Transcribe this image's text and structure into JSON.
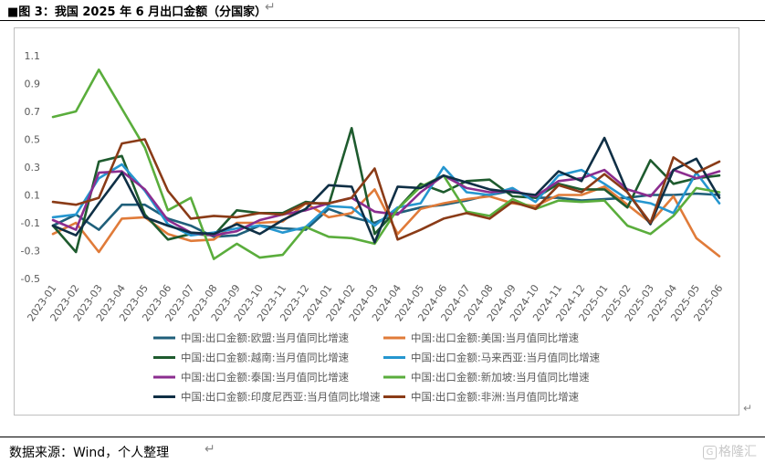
{
  "header": {
    "title": "■图 3：我国 2025 年 6 月出口金额（分国家）",
    "return_mark": "↵"
  },
  "footer": {
    "source": "数据来源：Wind，个人整理",
    "return_mark": "↵",
    "side_mark": "↵",
    "watermark": "格隆汇",
    "watermark_badge": "G"
  },
  "chart_data": {
    "type": "line",
    "ylim": [
      -0.5,
      1.1
    ],
    "yticks": [
      -0.5,
      -0.3,
      -0.1,
      0.1,
      0.3,
      0.5,
      0.7,
      0.9,
      1.1
    ],
    "ytick_labels": [
      "-0.5",
      "-0.3",
      "-0.1",
      "0.1",
      "0.3",
      "0.5",
      "0.7",
      "0.9",
      "1.1"
    ],
    "grid": false,
    "legend_position": "bottom",
    "x": [
      "2023-01",
      "2023-02",
      "2023-03",
      "2023-04",
      "2023-05",
      "2023-06",
      "2023-07",
      "2023-08",
      "2023-09",
      "2023-10",
      "2023-11",
      "2023-12",
      "2024-01",
      "2024-02",
      "2024-03",
      "2024-04",
      "2024-05",
      "2024-06",
      "2024-07",
      "2024-08",
      "2024-09",
      "2024-10",
      "2024-11",
      "2024-12",
      "2025-01",
      "2025-02",
      "2025-03",
      "2025-04",
      "2025-05",
      "2025-06"
    ],
    "series": [
      {
        "name": "中国:出口金额:欧盟:当月值同比增速",
        "color": "#1f5f7a",
        "values": [
          -0.12,
          -0.04,
          -0.15,
          0.03,
          0.03,
          -0.07,
          -0.12,
          -0.2,
          -0.19,
          -0.12,
          -0.14,
          -0.15,
          0.0,
          -0.06,
          -0.1,
          -0.03,
          0.01,
          0.03,
          0.06,
          0.1,
          0.13,
          0.08,
          0.08,
          0.06,
          0.07,
          0.08,
          0.1,
          0.1,
          0.11,
          0.1
        ]
      },
      {
        "name": "中国:出口金额:美国:当月值同比增速",
        "color": "#e07b39",
        "values": [
          -0.18,
          -0.1,
          -0.31,
          -0.07,
          -0.06,
          -0.18,
          -0.23,
          -0.22,
          -0.1,
          -0.1,
          -0.09,
          0.04,
          -0.06,
          -0.03,
          0.14,
          -0.18,
          0.0,
          0.04,
          0.07,
          0.09,
          0.04,
          0.02,
          0.1,
          0.1,
          0.16,
          0.03,
          -0.1,
          0.09,
          -0.21,
          -0.34
        ]
      },
      {
        "name": "中国:出口金额:越南:当月值同比增速",
        "color": "#1e5b2e",
        "values": [
          -0.12,
          -0.31,
          0.34,
          0.38,
          -0.04,
          -0.22,
          -0.18,
          -0.19,
          -0.01,
          -0.03,
          -0.03,
          0.05,
          0.03,
          0.58,
          -0.18,
          0.0,
          0.18,
          0.12,
          0.2,
          0.21,
          0.09,
          0.08,
          0.18,
          0.14,
          0.14,
          0.01,
          0.35,
          0.18,
          0.22,
          0.24
        ]
      },
      {
        "name": "中国:出口金额:马来西亚:当月值同比增速",
        "color": "#2596cf",
        "values": [
          -0.06,
          -0.04,
          0.22,
          0.32,
          0.13,
          -0.11,
          -0.19,
          -0.17,
          -0.14,
          -0.12,
          -0.17,
          -0.13,
          0.02,
          0.01,
          -0.12,
          0.01,
          0.04,
          0.3,
          0.12,
          0.1,
          0.15,
          0.05,
          0.24,
          0.28,
          0.18,
          0.07,
          0.04,
          -0.03,
          0.26,
          0.04
        ]
      },
      {
        "name": "中国:出口金额:泰国:当月值同比增速",
        "color": "#8b2d8f",
        "values": [
          -0.08,
          -0.15,
          0.26,
          0.27,
          0.14,
          -0.08,
          -0.17,
          -0.19,
          -0.16,
          -0.08,
          -0.04,
          -0.01,
          0.04,
          0.08,
          -0.02,
          -0.04,
          0.12,
          0.24,
          0.15,
          0.12,
          0.13,
          0.09,
          0.2,
          0.22,
          0.28,
          0.14,
          0.09,
          0.28,
          0.22,
          0.27
        ]
      },
      {
        "name": "中国:出口金额:新加坡:当月值同比增速",
        "color": "#5aad3c",
        "values": [
          0.66,
          0.7,
          1.0,
          0.72,
          0.44,
          -0.01,
          0.08,
          -0.36,
          -0.25,
          -0.35,
          -0.33,
          -0.13,
          -0.2,
          -0.21,
          -0.25,
          0.0,
          0.16,
          0.24,
          -0.02,
          -0.05,
          0.07,
          0.0,
          0.06,
          0.05,
          0.06,
          -0.12,
          -0.18,
          -0.05,
          0.15,
          0.12
        ]
      },
      {
        "name": "中国:出口金额:印度尼西亚:当月值同比增速",
        "color": "#0f2f45",
        "values": [
          -0.12,
          -0.19,
          0.04,
          0.26,
          -0.06,
          -0.12,
          -0.17,
          -0.18,
          -0.11,
          -0.18,
          -0.08,
          0.0,
          0.17,
          0.16,
          -0.24,
          0.16,
          0.15,
          0.24,
          0.19,
          0.14,
          0.12,
          0.1,
          0.27,
          0.2,
          0.51,
          0.12,
          -0.11,
          0.28,
          0.36,
          0.08
        ]
      },
      {
        "name": "中国:出口金额:非洲:当月值同比增速",
        "color": "#8a3b17",
        "values": [
          0.05,
          0.03,
          0.08,
          0.47,
          0.5,
          0.13,
          -0.07,
          -0.05,
          -0.06,
          -0.03,
          -0.04,
          0.04,
          0.04,
          0.08,
          0.29,
          -0.22,
          -0.15,
          -0.07,
          -0.03,
          -0.07,
          0.05,
          0.0,
          0.17,
          0.12,
          0.25,
          0.12,
          -0.1,
          0.37,
          0.26,
          0.34
        ]
      }
    ]
  }
}
